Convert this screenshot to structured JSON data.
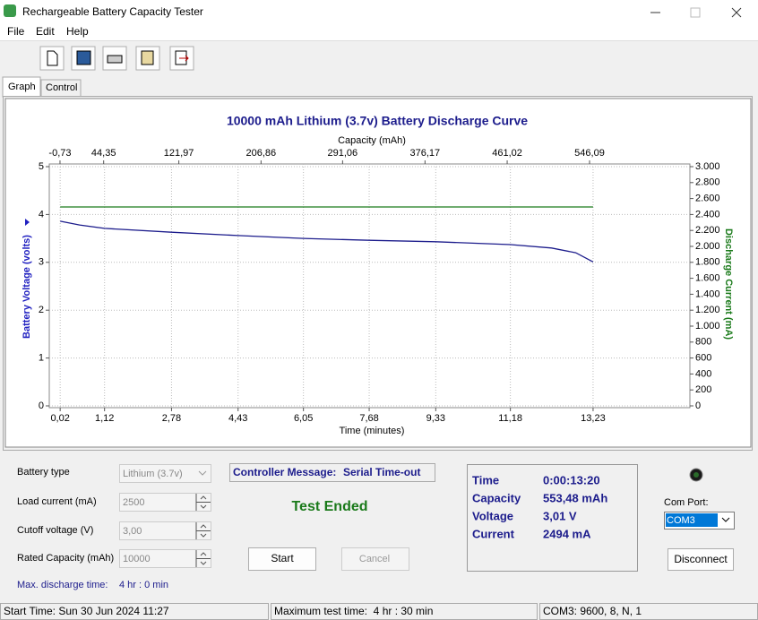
{
  "window": {
    "title": "Rechargeable Battery Capacity Tester"
  },
  "menu": [
    "File",
    "Edit",
    "Help"
  ],
  "tabs": [
    "Graph",
    "Control"
  ],
  "chart_data": {
    "type": "line",
    "title": "10000 mAh Lithium (3.7v) Battery Discharge Curve",
    "xlabel": "Time (minutes)",
    "x2label": "Capacity (mAh)",
    "ylabel": "Battery Voltage (volts)",
    "y2label": "Discharge Current (mA)",
    "x": [
      0.02,
      0.5,
      1.12,
      2.78,
      4.43,
      6.05,
      7.68,
      9.33,
      11.18,
      12.2,
      12.8,
      13.23
    ],
    "series": [
      {
        "name": "Battery Voltage",
        "color": "#1c1c8c",
        "values": [
          3.86,
          3.78,
          3.71,
          3.63,
          3.56,
          3.5,
          3.46,
          3.43,
          3.37,
          3.3,
          3.2,
          3.01
        ]
      },
      {
        "name": "Discharge Current",
        "color": "#1a7a1a",
        "axis": "y2",
        "values": [
          2494,
          2494,
          2494,
          2494,
          2494,
          2494,
          2494,
          2494,
          2494,
          2494,
          2494,
          2494
        ]
      }
    ],
    "xlim": [
      -0.25,
      15.63
    ],
    "xticks": [
      {
        "value": 0.02,
        "label": "0,02"
      },
      {
        "value": 1.12,
        "label": "1,12"
      },
      {
        "value": 2.78,
        "label": "2,78"
      },
      {
        "value": 4.43,
        "label": "4,43"
      },
      {
        "value": 6.05,
        "label": "6,05"
      },
      {
        "value": 7.68,
        "label": "7,68"
      },
      {
        "value": 9.33,
        "label": "9,33"
      },
      {
        "value": 11.18,
        "label": "11,18"
      },
      {
        "value": 13.23,
        "label": "13,23"
      }
    ],
    "x2lim": [
      -11.8,
      649.7
    ],
    "x2ticks": [
      {
        "value": -0.73,
        "label": "-0,73"
      },
      {
        "value": 44.35,
        "label": "44,35"
      },
      {
        "value": 121.97,
        "label": "121,97"
      },
      {
        "value": 206.86,
        "label": "206,86"
      },
      {
        "value": 291.06,
        "label": "291,06"
      },
      {
        "value": 376.17,
        "label": "376,17"
      },
      {
        "value": 461.02,
        "label": "461,02"
      },
      {
        "value": 546.09,
        "label": "546,09"
      }
    ],
    "ylim": [
      0,
      5
    ],
    "yticks": [
      0,
      1,
      2,
      3,
      4,
      5
    ],
    "y2lim": [
      0,
      3000
    ],
    "y2ticks": [
      0,
      200,
      400,
      600,
      800,
      {
        "value": 1000,
        "label": "1.000"
      },
      {
        "value": 1200,
        "label": "1.200"
      },
      {
        "value": 1400,
        "label": "1.400"
      },
      {
        "value": 1600,
        "label": "1.600"
      },
      {
        "value": 1800,
        "label": "1.800"
      },
      {
        "value": 2000,
        "label": "2.000"
      },
      {
        "value": 2200,
        "label": "2.200"
      },
      {
        "value": 2400,
        "label": "2.400"
      },
      {
        "value": 2600,
        "label": "2.600"
      },
      {
        "value": 2800,
        "label": "2.800"
      },
      {
        "value": 3000,
        "label": "3.000"
      }
    ],
    "grid": true
  },
  "form": {
    "fields": [
      {
        "label": "Battery type",
        "value": "Lithium (3.7v)"
      },
      {
        "label": "Load current (mA)",
        "value": "2500"
      },
      {
        "label": "Cutoff voltage (V)",
        "value": "3,00"
      },
      {
        "label": "Rated Capacity (mAh)",
        "value": "10000"
      }
    ],
    "max_discharge": {
      "label": "Max. discharge time:",
      "value": "4 hr : 0 min"
    }
  },
  "controller": {
    "label": "Controller Message:",
    "value": "Serial Time-out",
    "status": "Test Ended"
  },
  "buttons": {
    "start": "Start",
    "cancel": "Cancel",
    "disconnect": "Disconnect"
  },
  "readout": [
    {
      "label": "Time",
      "value": "0:00:13:20"
    },
    {
      "label": "Capacity",
      "value": "553,48 mAh"
    },
    {
      "label": "Voltage",
      "value": "3,01 V"
    },
    {
      "label": "Current",
      "value": "2494 mA"
    }
  ],
  "com": {
    "label": "Com Port:",
    "value": "COM3"
  },
  "status_bar": [
    "Start Time: Sun 30 Jun 2024 11:27",
    "Maximum test time:  4 hr : 30 min",
    "COM3: 9600, 8, N, 1"
  ]
}
